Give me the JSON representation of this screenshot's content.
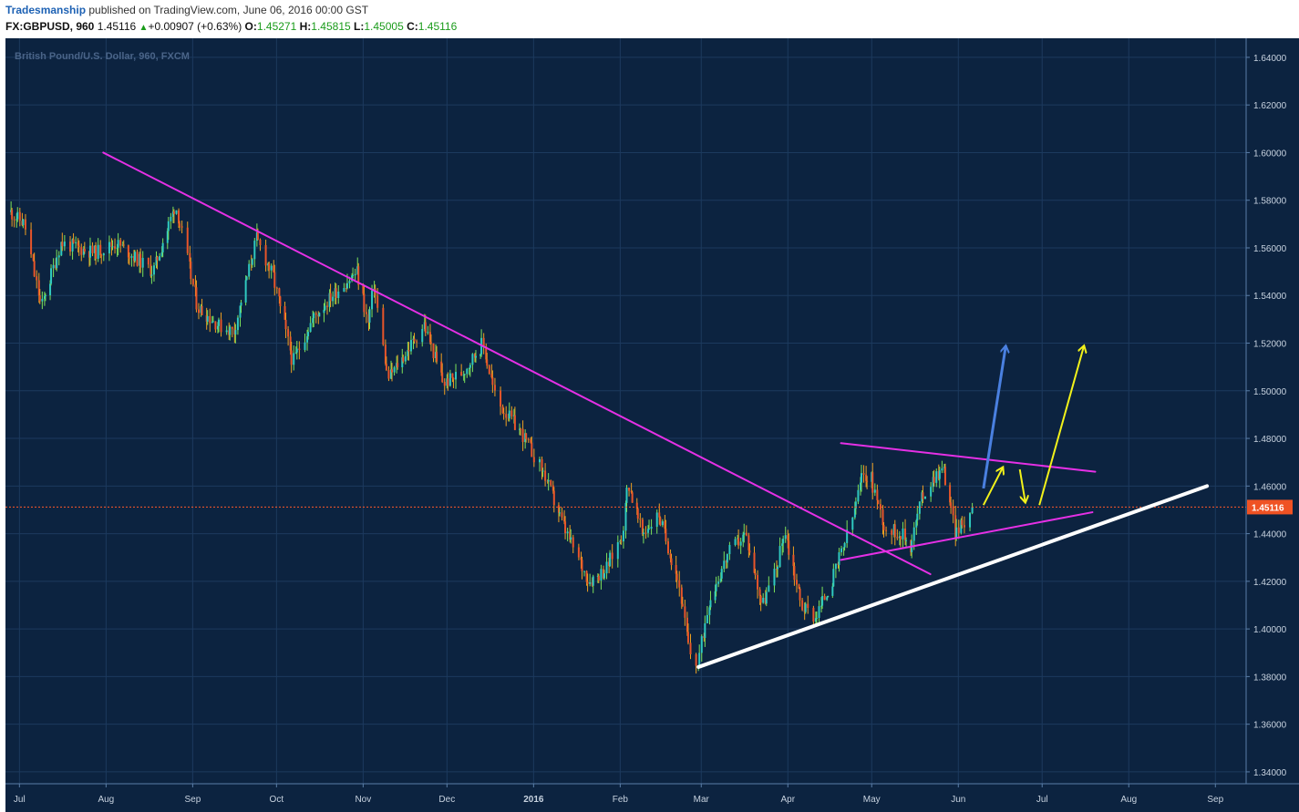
{
  "header": {
    "author": "Tradesmanship",
    "published": "published on TradingView.com, June 06, 2016 00:00 GST",
    "symbol": "FX:GBPUSD, 960",
    "last": "1.45116",
    "change_arrow": "▲",
    "change": "+0.00907 (+0.63%)",
    "o_label": "O:",
    "o_value": "1.45271",
    "h_label": "H:",
    "h_value": "1.45815",
    "l_label": "L:",
    "l_value": "1.45005",
    "c_label": "C:",
    "c_value": "1.45116"
  },
  "colors": {
    "background": "#0c2340",
    "grid": "#1c3a5e",
    "up_candle": "#2fc9c0",
    "down_candle": "#e8552a",
    "up_wick": "#7de35a",
    "down_wick": "#f0a020",
    "trendline_magenta": "#e530e5",
    "support_white": "#ffffff",
    "arrow_yellow": "#f2f21a",
    "arrow_blue": "#4a80e0",
    "price_line": "#ff5a2a",
    "price_tag_bg": "#ef5223"
  },
  "chart_data": {
    "type": "candlestick",
    "title": "British Pound/U.S. Dollar, 960, FXCM",
    "y_range": [
      1.335,
      1.648
    ],
    "y_ticks": [
      "1.64000",
      "1.62000",
      "1.60000",
      "1.58000",
      "1.56000",
      "1.54000",
      "1.52000",
      "1.50000",
      "1.48000",
      "1.46000",
      "1.44000",
      "1.42000",
      "1.40000",
      "1.38000",
      "1.36000",
      "1.34000"
    ],
    "x_ticks": [
      "Jul",
      "Aug",
      "Sep",
      "Oct",
      "Nov",
      "Dec",
      "2016",
      "Feb",
      "Mar",
      "Apr",
      "May",
      "Jun",
      "Jul",
      "Aug",
      "Sep"
    ],
    "current_price": "1.45116",
    "grid": true,
    "series": [
      {
        "type": "price-path",
        "points": [
          [
            "2015-06-28",
            1.575
          ],
          [
            "2015-07-03",
            1.57
          ],
          [
            "2015-07-09",
            1.535
          ],
          [
            "2015-07-16",
            1.562
          ],
          [
            "2015-07-28",
            1.558
          ],
          [
            "2015-08-05",
            1.562
          ],
          [
            "2015-08-18",
            1.55
          ],
          [
            "2015-08-26",
            1.578
          ],
          [
            "2015-08-28",
            1.568
          ],
          [
            "2015-09-03",
            1.535
          ],
          [
            "2015-09-11",
            1.527
          ],
          [
            "2015-09-16",
            1.525
          ],
          [
            "2015-09-24",
            1.564
          ],
          [
            "2015-09-30",
            1.548
          ],
          [
            "2015-10-07",
            1.512
          ],
          [
            "2015-10-14",
            1.53
          ],
          [
            "2015-10-21",
            1.54
          ],
          [
            "2015-10-30",
            1.55
          ],
          [
            "2015-11-03",
            1.528
          ],
          [
            "2015-11-05",
            1.545
          ],
          [
            "2015-11-10",
            1.505
          ],
          [
            "2015-11-16",
            1.515
          ],
          [
            "2015-11-23",
            1.528
          ],
          [
            "2015-11-30",
            1.503
          ],
          [
            "2015-12-07",
            1.508
          ],
          [
            "2015-12-14",
            1.52
          ],
          [
            "2015-12-19",
            1.495
          ],
          [
            "2015-12-23",
            1.49
          ],
          [
            "2015-12-28",
            1.482
          ],
          [
            "2016-01-05",
            1.465
          ],
          [
            "2016-01-13",
            1.44
          ],
          [
            "2016-01-21",
            1.42
          ],
          [
            "2016-01-27",
            1.425
          ],
          [
            "2016-02-02",
            1.44
          ],
          [
            "2016-02-04",
            1.462
          ],
          [
            "2016-02-09",
            1.44
          ],
          [
            "2016-02-15",
            1.448
          ],
          [
            "2016-02-22",
            1.42
          ],
          [
            "2016-02-26",
            1.39
          ],
          [
            "2016-02-29",
            1.385
          ],
          [
            "2016-03-04",
            1.412
          ],
          [
            "2016-03-11",
            1.432
          ],
          [
            "2016-03-17",
            1.44
          ],
          [
            "2016-03-20",
            1.425
          ],
          [
            "2016-03-23",
            1.41
          ],
          [
            "2016-03-28",
            1.425
          ],
          [
            "2016-03-31",
            1.442
          ],
          [
            "2016-04-06",
            1.41
          ],
          [
            "2016-04-11",
            1.405
          ],
          [
            "2016-04-17",
            1.42
          ],
          [
            "2016-04-24",
            1.445
          ],
          [
            "2016-04-28",
            1.465
          ],
          [
            "2016-05-01",
            1.463
          ],
          [
            "2016-05-06",
            1.442
          ],
          [
            "2016-05-12",
            1.44
          ],
          [
            "2016-05-15",
            1.435
          ],
          [
            "2016-05-19",
            1.455
          ],
          [
            "2016-05-24",
            1.465
          ],
          [
            "2016-05-27",
            1.467
          ],
          [
            "2016-05-31",
            1.441
          ],
          [
            "2016-06-03",
            1.444
          ],
          [
            "2016-06-06",
            1.451
          ]
        ]
      }
    ],
    "annotations": [
      {
        "type": "trendline",
        "color": "magenta",
        "from": [
          "2015-07-31",
          1.6
        ],
        "to": [
          "2016-05-22",
          1.423
        ]
      },
      {
        "type": "trendline",
        "color": "magenta",
        "from": [
          "2016-04-20",
          1.478
        ],
        "to": [
          "2016-07-20",
          1.466
        ]
      },
      {
        "type": "trendline",
        "color": "magenta",
        "from": [
          "2016-04-20",
          1.429
        ],
        "to": [
          "2016-07-19",
          1.449
        ]
      },
      {
        "type": "trendline",
        "color": "white",
        "from": [
          "2016-02-29",
          1.384
        ],
        "to": [
          "2016-08-29",
          1.46
        ]
      },
      {
        "type": "arrow",
        "color": "blue",
        "from": [
          "2016-06-10",
          1.459
        ],
        "to": [
          "2016-06-18",
          1.519
        ]
      },
      {
        "type": "arrow",
        "color": "yellow",
        "from": [
          "2016-06-10",
          1.452
        ],
        "to": [
          "2016-06-17",
          1.468
        ]
      },
      {
        "type": "arrow",
        "color": "yellow",
        "from": [
          "2016-06-23",
          1.467
        ],
        "to": [
          "2016-06-25",
          1.453
        ]
      },
      {
        "type": "arrow",
        "color": "yellow",
        "from": [
          "2016-06-30",
          1.452
        ],
        "to": [
          "2016-07-16",
          1.519
        ]
      }
    ]
  }
}
